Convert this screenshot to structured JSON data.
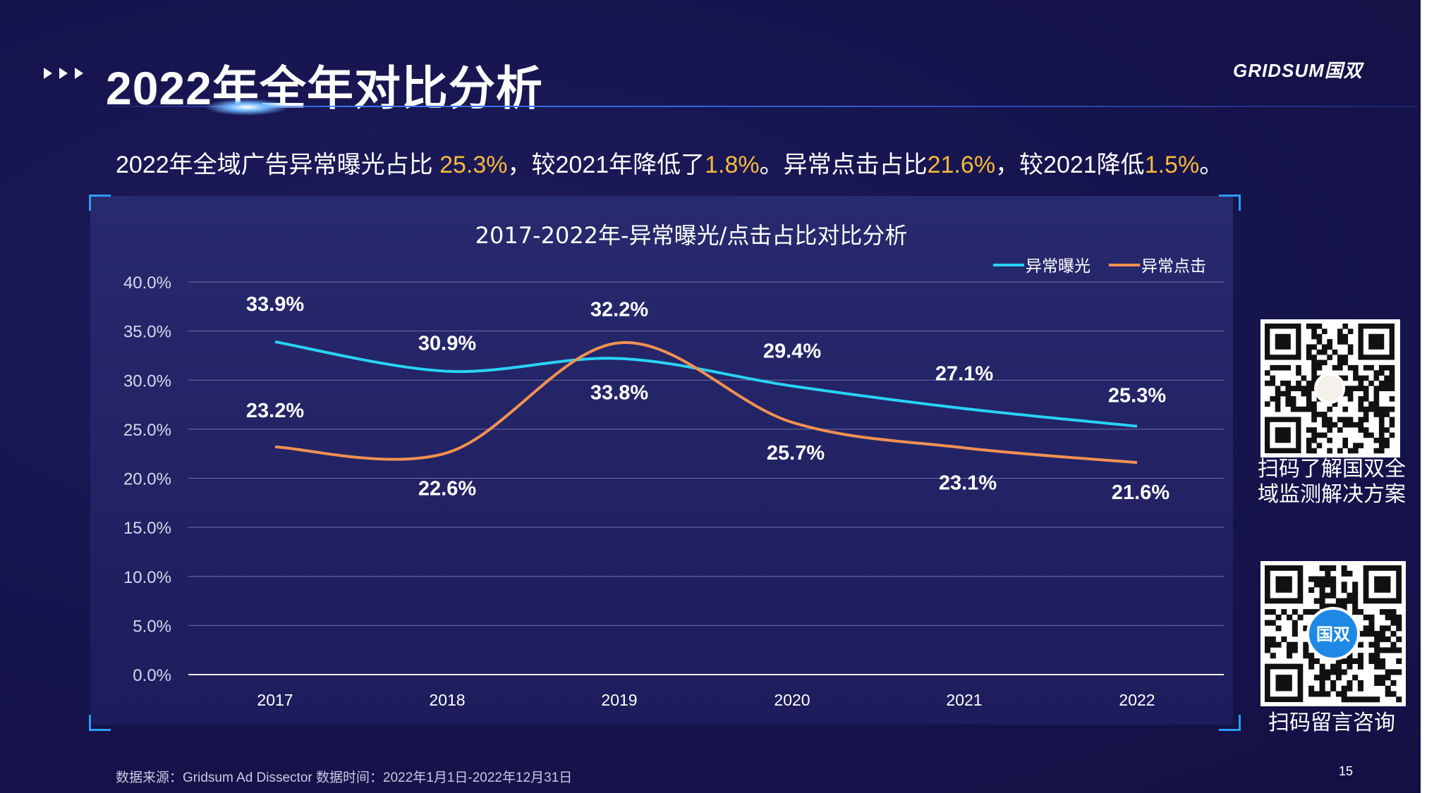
{
  "header": {
    "title": "2022年全年对比分析",
    "logo": "GRIDSUM国双"
  },
  "summary": {
    "part1": "2022年全域广告异常曝光占比 ",
    "v1": "25.3%",
    "part2": "，较2021年降低了",
    "v2": "1.8%",
    "part3": "。异常点击占比",
    "v3": "21.6%",
    "part4": "，较2021降低",
    "v4": "1.5%",
    "part5": "。"
  },
  "colors": {
    "exposure": "#29d3f5",
    "click": "#f39150",
    "highlight": "#f6b93b",
    "grid": "#6c6f9e"
  },
  "chart_data": {
    "type": "line",
    "title": "2017-2022年-异常曝光/点击占比对比分析",
    "categories": [
      "2017",
      "2018",
      "2019",
      "2020",
      "2021",
      "2022"
    ],
    "series": [
      {
        "name": "异常曝光",
        "values": [
          33.9,
          30.9,
          32.2,
          29.4,
          27.1,
          25.3
        ],
        "labels": [
          "33.9%",
          "30.9%",
          "32.2%",
          "29.4%",
          "27.1%",
          "25.3%"
        ]
      },
      {
        "name": "异常点击",
        "values": [
          23.2,
          22.6,
          33.8,
          25.7,
          23.1,
          21.6
        ],
        "labels": [
          "23.2%",
          "22.6%",
          "33.8%",
          "25.7%",
          "23.1%",
          "21.6%"
        ]
      }
    ],
    "yticks": [
      "0.0%",
      "5.0%",
      "10.0%",
      "15.0%",
      "20.0%",
      "25.0%",
      "30.0%",
      "35.0%",
      "40.0%"
    ],
    "ylim": [
      0,
      40
    ],
    "legend": "top-right",
    "smooth": true
  },
  "qr": {
    "caption1": "扫码了解国双全域监测解决方案",
    "caption2": "扫码留言咨询",
    "badge": "国双"
  },
  "footer": {
    "source": "数据来源：Gridsum Ad Dissector 数据时间：2022年1月1日-2022年12月31日",
    "page": "15"
  }
}
